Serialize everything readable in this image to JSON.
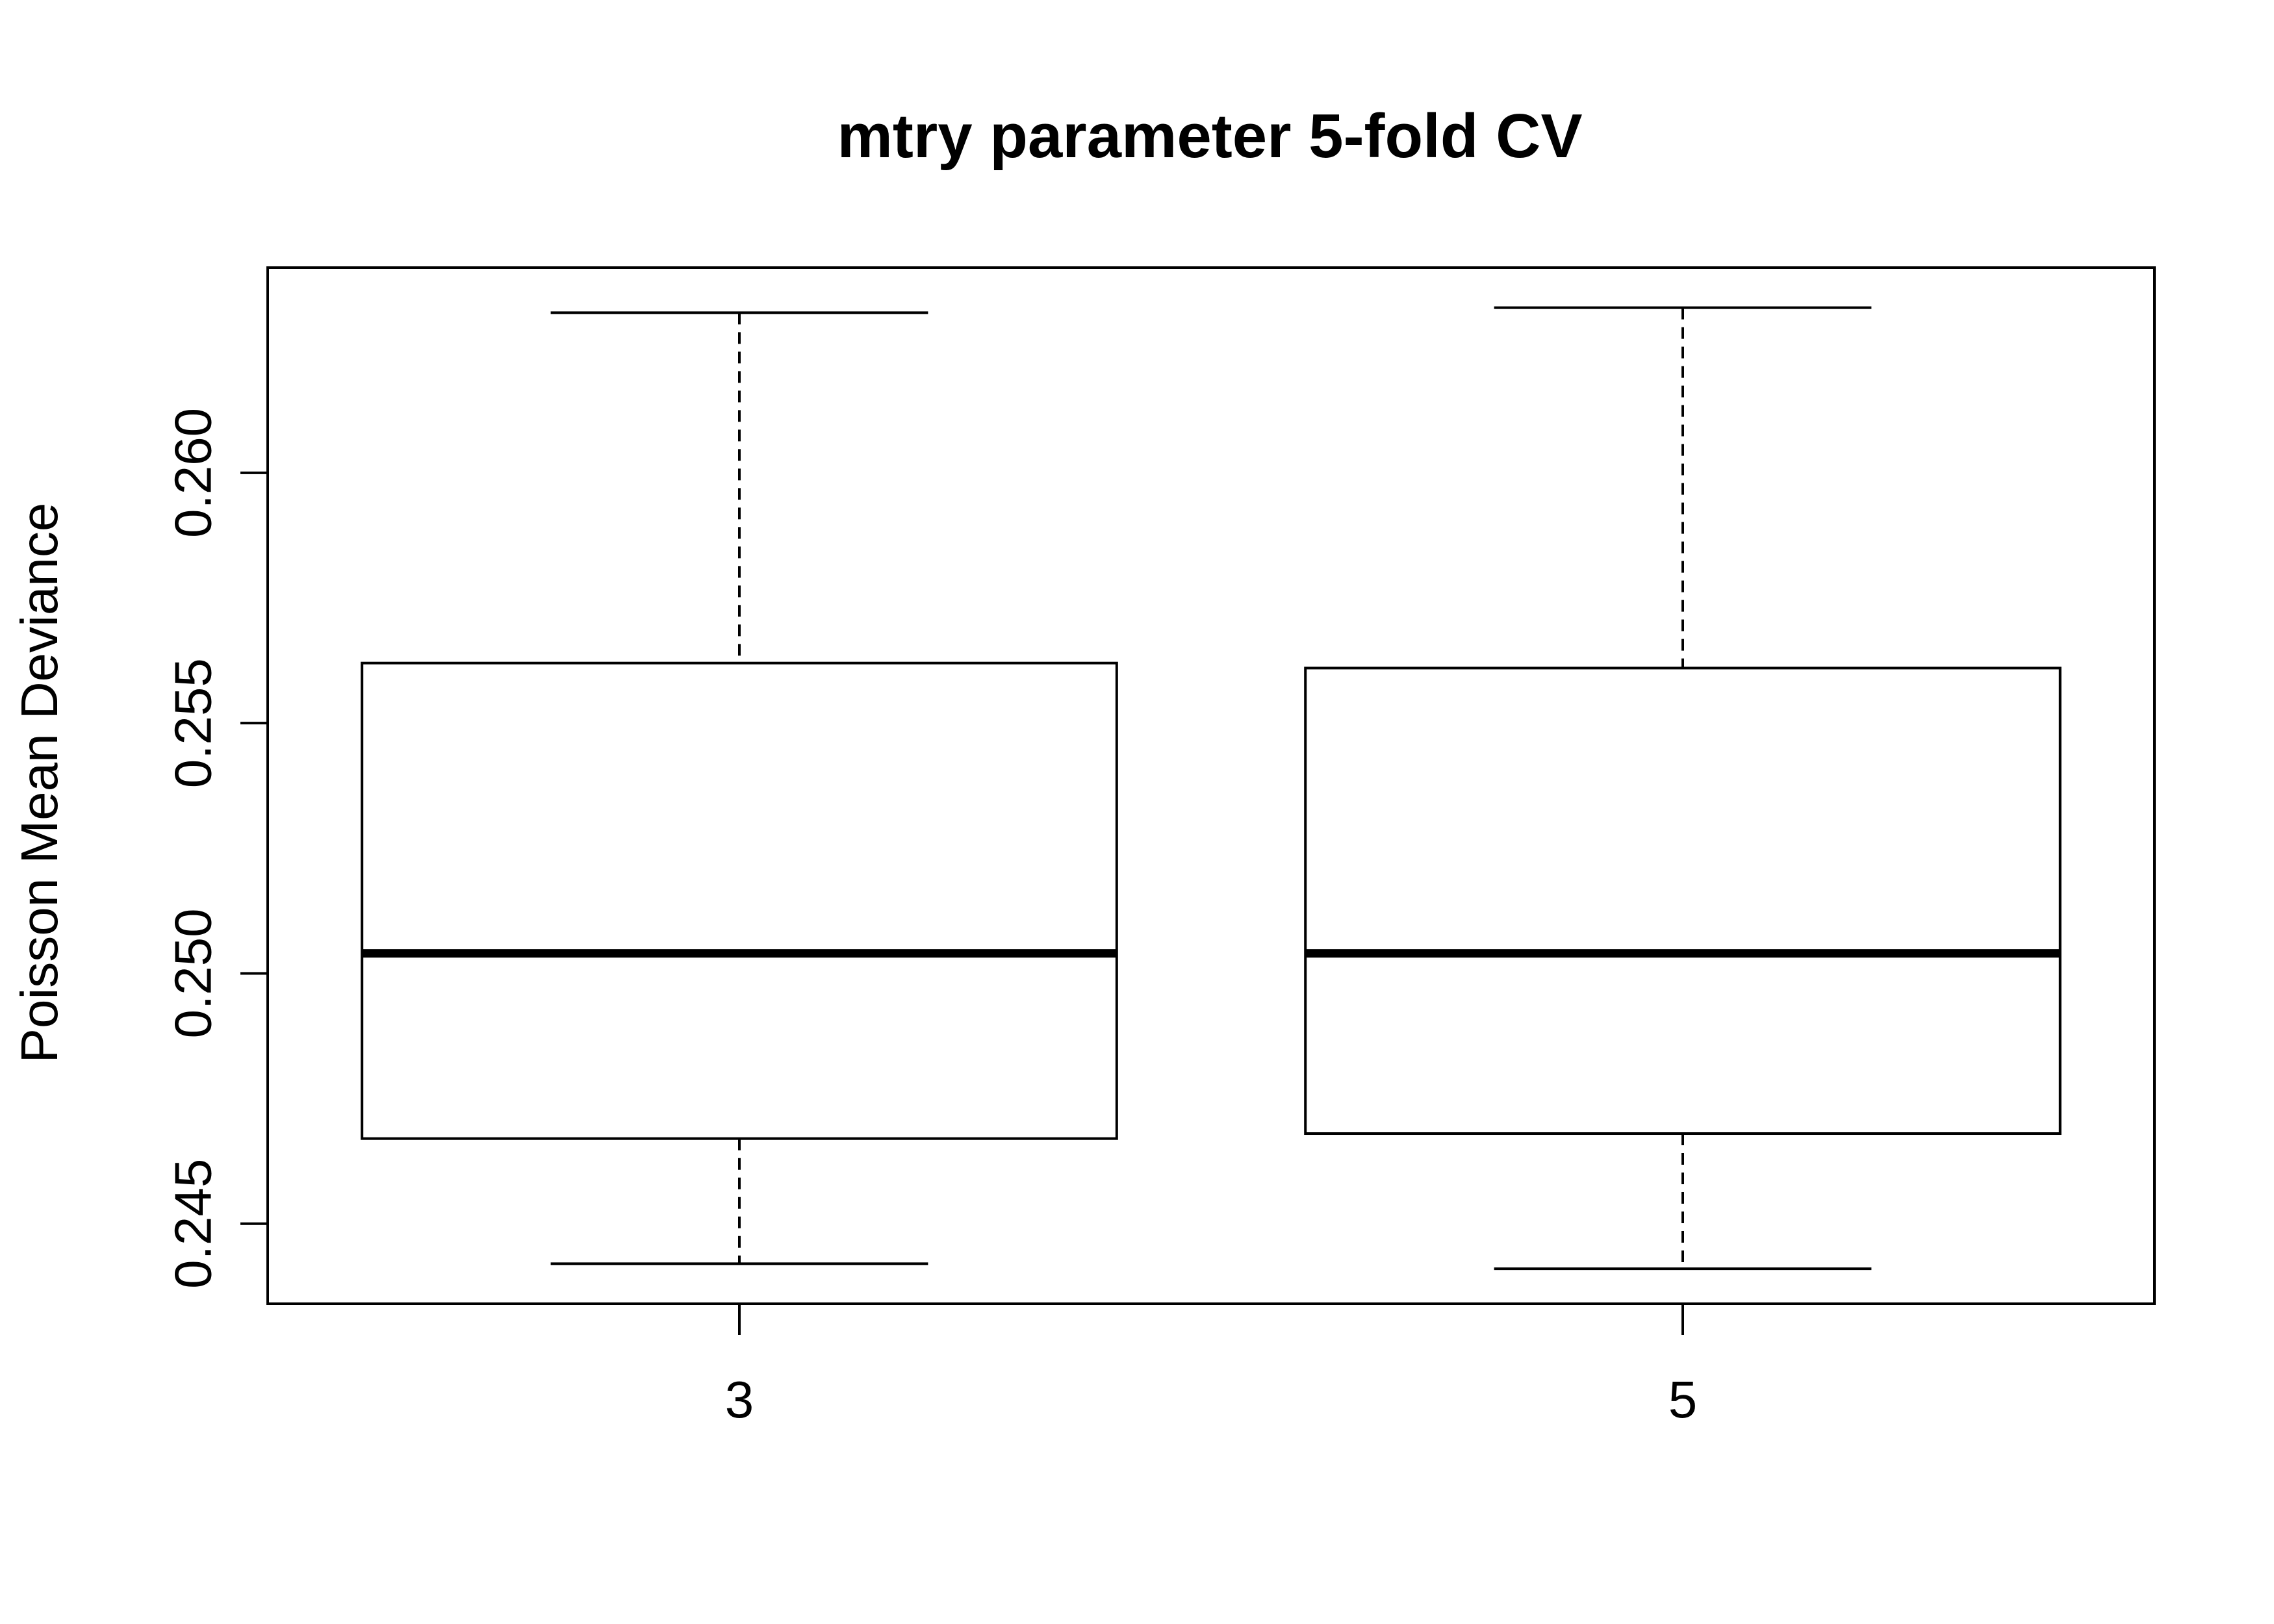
{
  "chart_data": {
    "type": "boxplot",
    "title": "mtry parameter 5-fold CV",
    "xlabel": "",
    "ylabel": "Poisson Mean Deviance",
    "categories": [
      "3",
      "5"
    ],
    "boxes": [
      {
        "category": "3",
        "whisker_low": 0.2442,
        "q1": 0.2467,
        "median": 0.2504,
        "q3": 0.2562,
        "whisker_high": 0.2632
      },
      {
        "category": "5",
        "whisker_low": 0.2441,
        "q1": 0.2468,
        "median": 0.2504,
        "q3": 0.2561,
        "whisker_high": 0.2633
      }
    ],
    "ylim": [
      0.2434,
      0.2641
    ],
    "yticks": [
      0.245,
      0.25,
      0.255,
      0.26
    ],
    "ytick_labels": [
      "0.245",
      "0.250",
      "0.255",
      "0.260"
    ],
    "grid": false,
    "legend": "none"
  }
}
